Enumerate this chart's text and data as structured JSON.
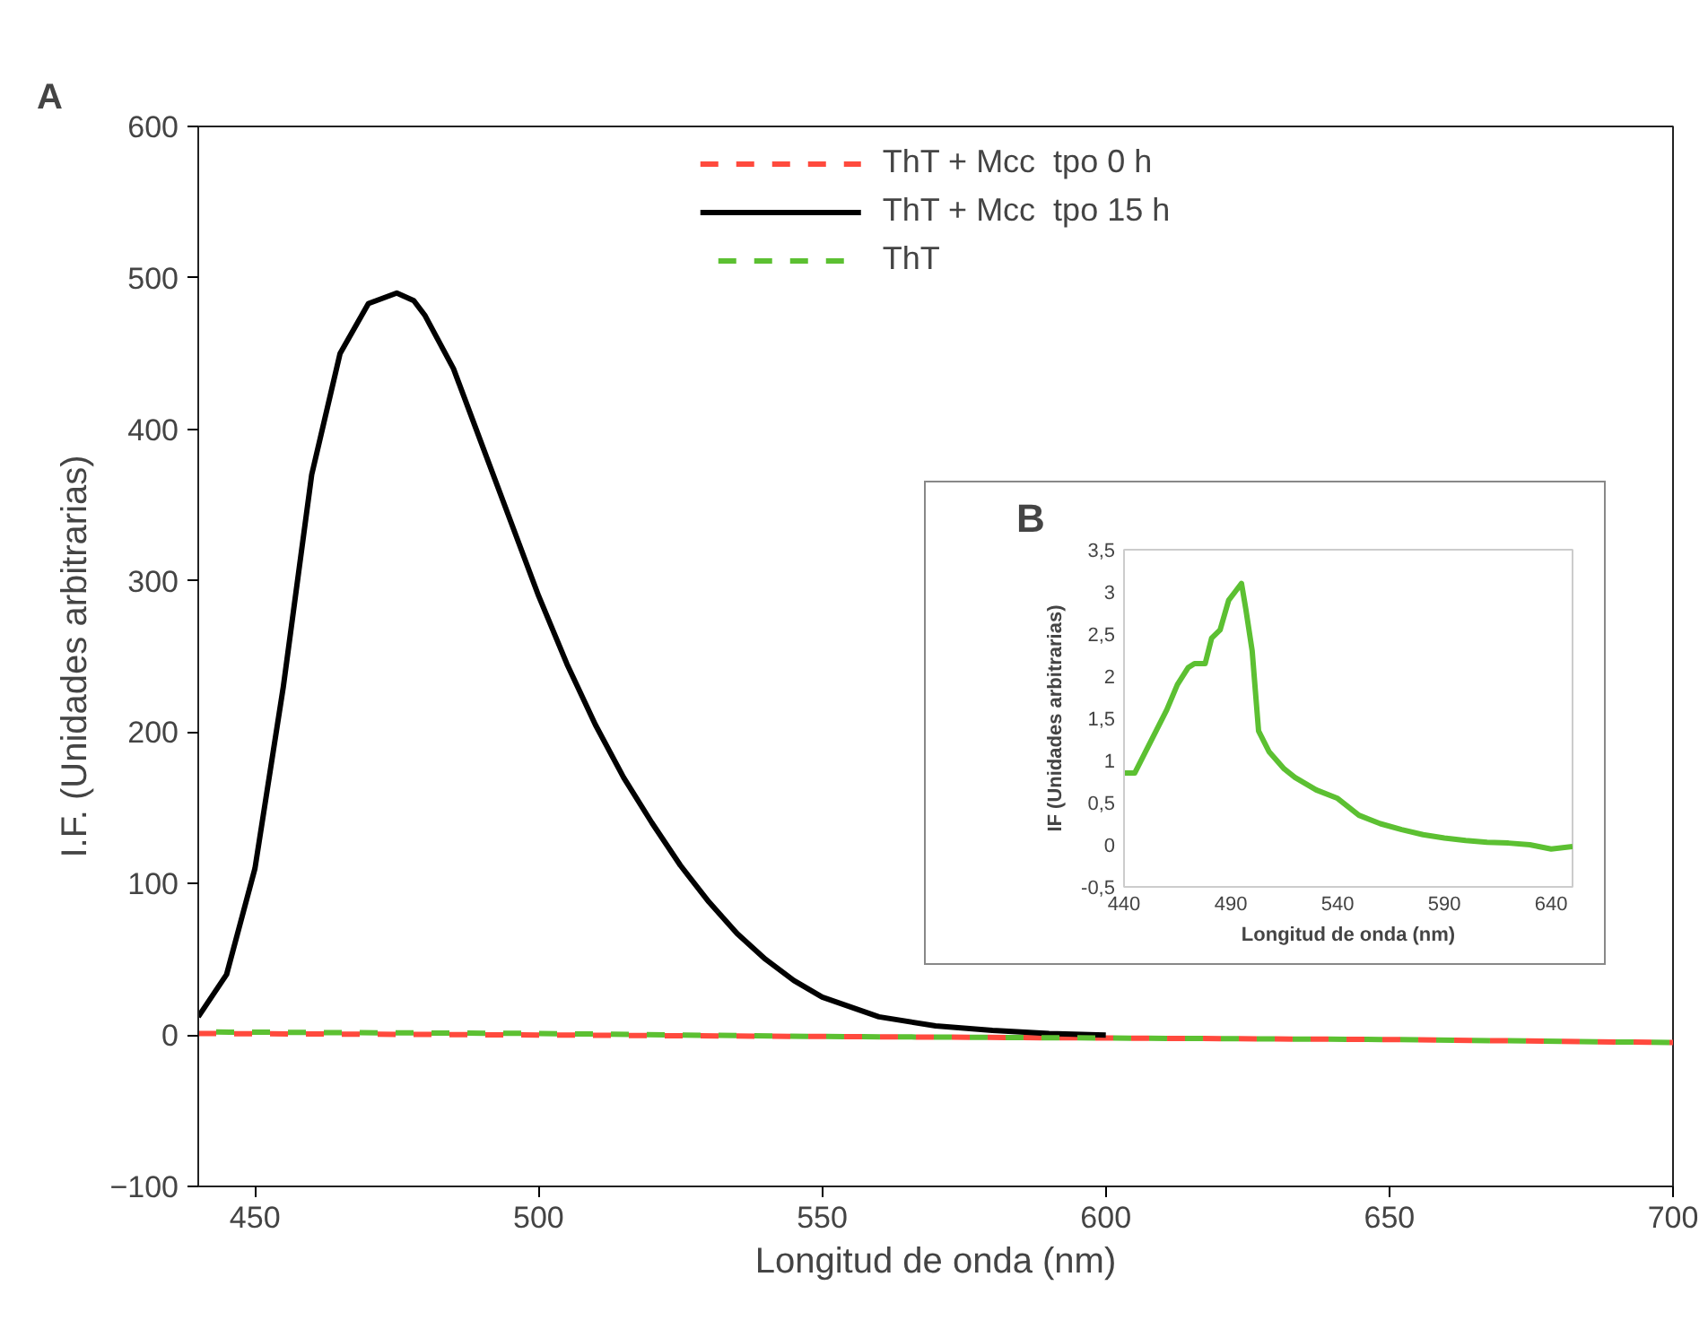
{
  "chart_data": [
    {
      "type": "line",
      "annotations": [
        "A"
      ],
      "xlabel": "Longitud de onda (nm)",
      "ylabel": "I.F. (Unidades arbitrarias)",
      "xlim": [
        440,
        700
      ],
      "xticks": [
        450,
        500,
        550,
        600,
        650,
        700
      ],
      "ylim": [
        -100,
        600
      ],
      "yticks": [
        -100,
        0,
        100,
        200,
        300,
        400,
        500,
        600
      ],
      "grid": false,
      "legend": "top",
      "series": [
        {
          "name": "ThT + Mcc  tpo 0 h",
          "color": "#ff4a3d",
          "line_style": "dashed",
          "x": [
            440,
            500,
            550,
            600,
            650,
            700
          ],
          "values": [
            1,
            0,
            -1,
            -2,
            -3,
            -5
          ]
        },
        {
          "name": "ThT + Mcc  tpo 15 h",
          "color": "#000000",
          "line_style": "solid",
          "x": [
            440,
            445,
            450,
            455,
            460,
            465,
            470,
            475,
            478,
            480,
            485,
            490,
            495,
            500,
            505,
            510,
            515,
            520,
            525,
            530,
            535,
            540,
            545,
            550,
            560,
            570,
            580,
            590,
            600
          ],
          "values": [
            12,
            40,
            110,
            230,
            370,
            450,
            483,
            490,
            485,
            475,
            440,
            390,
            340,
            290,
            245,
            205,
            170,
            140,
            112,
            88,
            67,
            50,
            36,
            25,
            12,
            6,
            3,
            1,
            0
          ]
        },
        {
          "name": "ThT",
          "color": "#5cc032",
          "line_style": "dashed",
          "x": [
            440,
            500,
            550,
            600,
            650,
            700
          ],
          "values": [
            2,
            1,
            -1,
            -2,
            -3,
            -5
          ]
        }
      ]
    },
    {
      "type": "line",
      "annotations": [
        "B"
      ],
      "xlabel": "Longitud de onda (nm)",
      "ylabel": "IF (Unidades arbitrarias)",
      "xlim": [
        440,
        650
      ],
      "xticks": [
        440,
        490,
        540,
        590,
        640
      ],
      "ylim": [
        -0.5,
        3.5
      ],
      "yticks": [
        {
          "value": -0.5,
          "label": "-0,5"
        },
        0,
        {
          "value": 0.5,
          "label": "0,5"
        },
        1,
        {
          "value": 1.5,
          "label": "1,5"
        },
        2,
        {
          "value": 2.5,
          "label": "2,5"
        },
        3,
        {
          "value": 3.5,
          "label": "3,5"
        }
      ],
      "grid": false,
      "series": [
        {
          "color": "#5cc032",
          "line_style": "solid",
          "x": [
            440,
            445,
            450,
            455,
            460,
            465,
            470,
            473,
            478,
            481,
            485,
            489,
            492,
            495,
            497,
            500,
            503,
            508,
            515,
            520,
            530,
            540,
            550,
            560,
            570,
            580,
            590,
            600,
            610,
            620,
            630,
            640,
            650
          ],
          "values": [
            0.85,
            0.85,
            1.1,
            1.35,
            1.6,
            1.9,
            2.1,
            2.15,
            2.15,
            2.45,
            2.55,
            2.9,
            3.0,
            3.1,
            2.8,
            2.3,
            1.35,
            1.1,
            0.9,
            0.8,
            0.65,
            0.55,
            0.35,
            0.25,
            0.18,
            0.12,
            0.08,
            0.05,
            0.03,
            0.02,
            0.0,
            -0.05,
            -0.02
          ]
        }
      ]
    }
  ]
}
